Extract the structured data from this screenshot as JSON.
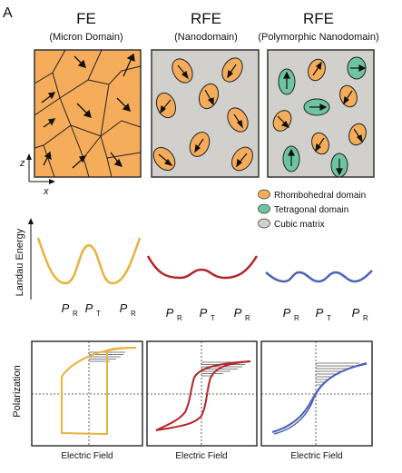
{
  "figure": {
    "panel_letter": "A",
    "columns": [
      {
        "title": "FE",
        "subtitle": "(Micron Domain)"
      },
      {
        "title": "RFE",
        "subtitle": "(Nanodomain)"
      },
      {
        "title": "RFE",
        "subtitle": "(Polymorphic Nanodomain)"
      }
    ],
    "axes": {
      "z": "z",
      "x": "x"
    },
    "legend": [
      {
        "label": "Rhombohedral domain",
        "color": "#F5AD5B"
      },
      {
        "label": "Tetragonal domain",
        "color": "#6CC4A0"
      },
      {
        "label": "Cubic matrix",
        "color": "#D2D0CC"
      }
    ],
    "energy": {
      "ylabel": "Landau Energy",
      "tick_main": [
        "P",
        "P",
        "P"
      ],
      "tick_sub": [
        "R",
        "T",
        "R"
      ],
      "colors": [
        "#E8B23C",
        "#B3262B",
        "#4D63B5"
      ]
    },
    "hysteresis": {
      "ylabel": "Polarization",
      "xlabel": "Electric Field",
      "colors": [
        "#E8B23C",
        "#B3262B",
        "#4D63B5"
      ]
    },
    "palette": {
      "fe_fill": "#F5AD5B",
      "cubic": "#D2D0CC",
      "tetragonal": "#6CC4A0",
      "frame": "#333333"
    }
  }
}
